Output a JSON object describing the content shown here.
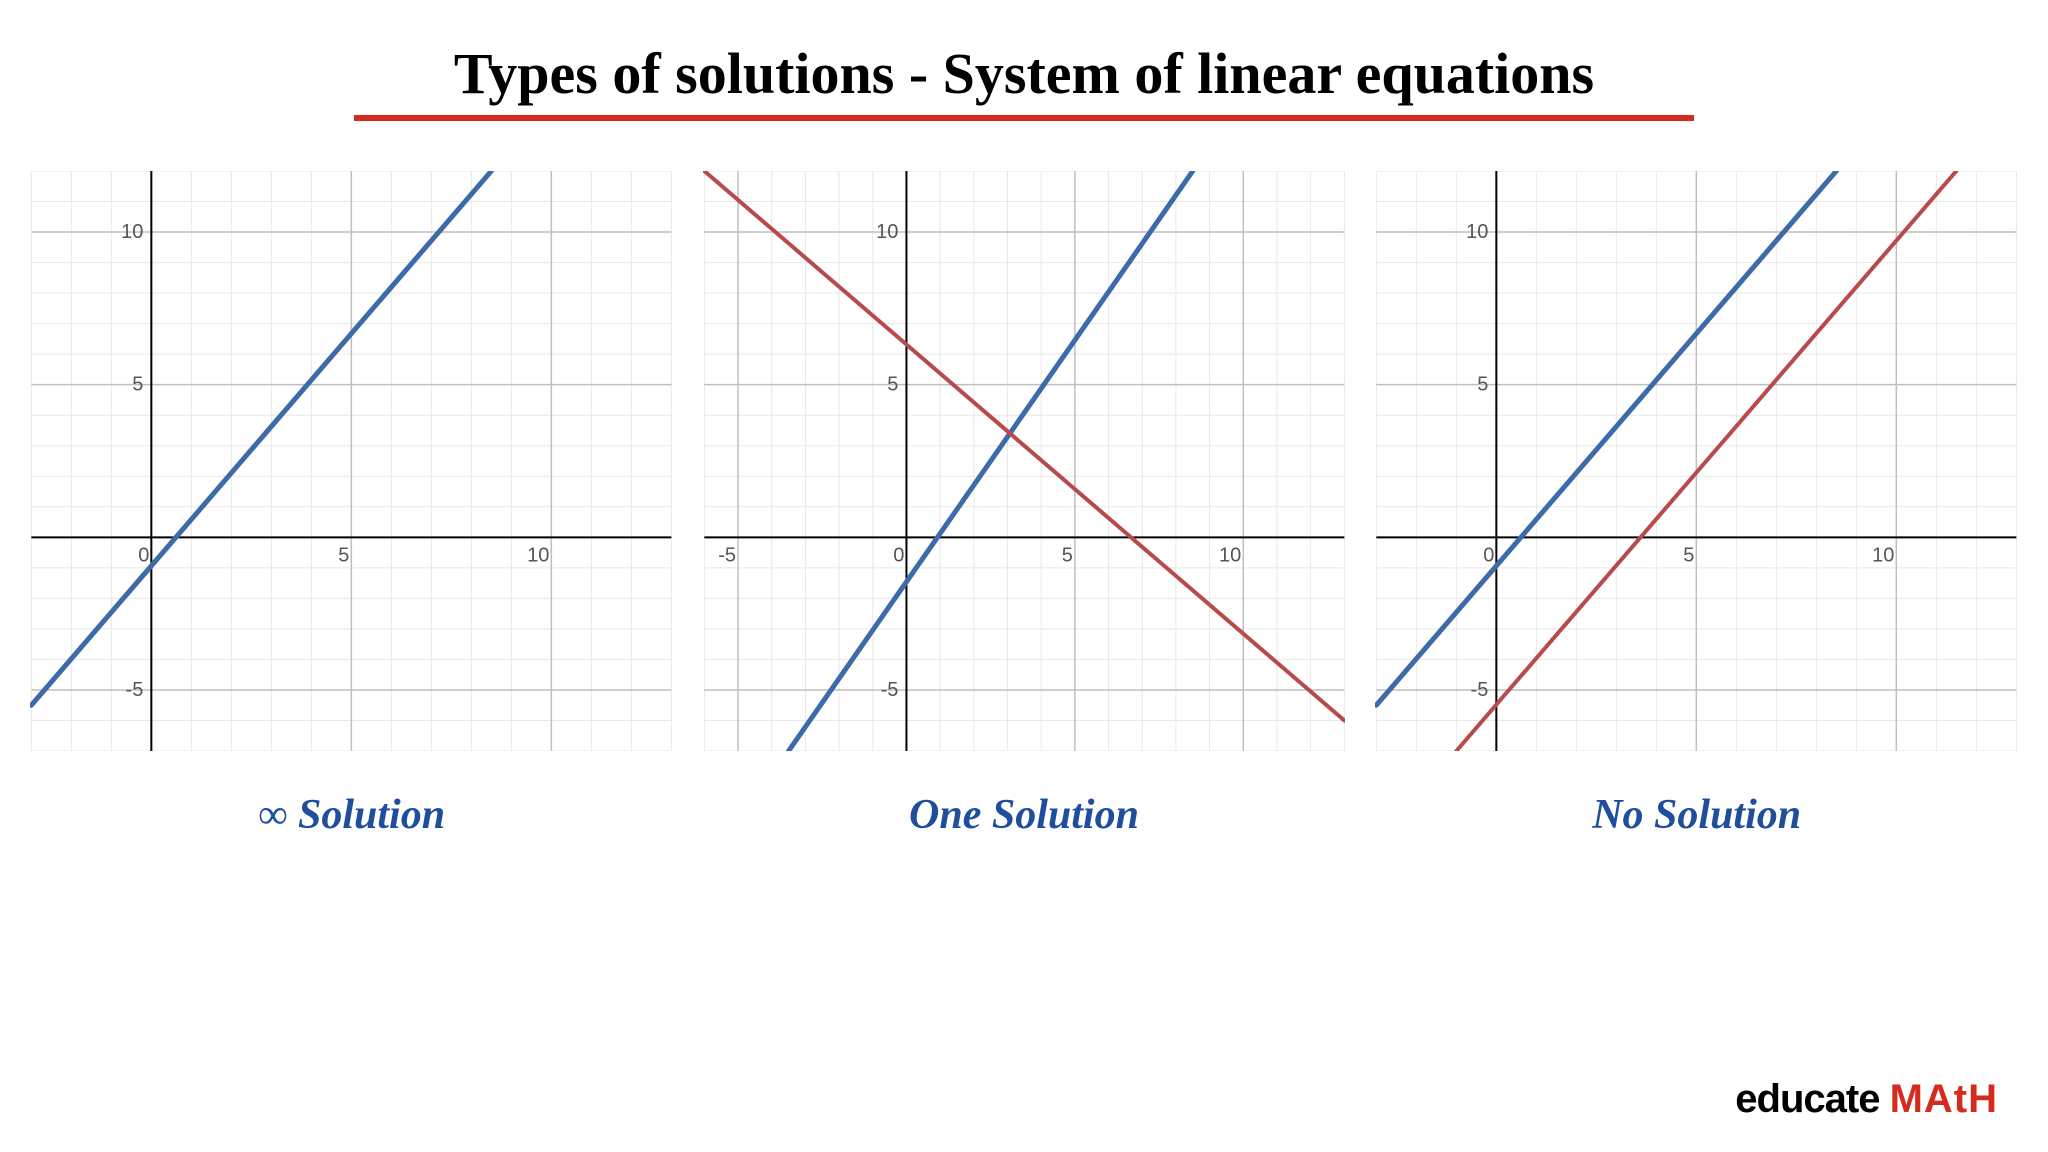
{
  "title": "Types of solutions - System of linear equations",
  "title_underline_color": "#d52b1e",
  "title_underline_width": 1340,
  "caption_color": "#1f4e9c",
  "logo": {
    "educate": "educate ",
    "math": "MAtH"
  },
  "grid": {
    "minor_color": "#e8e8e8",
    "major_color": "#bfbfbf",
    "axis_color": "#000000",
    "tick_font_size": 20,
    "tick_color": "#555555",
    "line_width_blue": 5,
    "line_width_red": 4,
    "blue": "#3d6aa8",
    "red": "#b84a4a"
  },
  "panels": [
    {
      "caption": "∞ Solution",
      "xlim": [
        -3,
        13
      ],
      "ylim": [
        -7,
        12
      ],
      "xticks": [
        0,
        5,
        10
      ],
      "yticks": [
        -5,
        0,
        5,
        10
      ],
      "lines": [
        {
          "color": "blue",
          "x1": -3,
          "y1": -5.5,
          "x2": 8.5,
          "y2": 12
        }
      ]
    },
    {
      "caption": "One Solution",
      "xlim": [
        -6,
        13
      ],
      "ylim": [
        -7,
        12
      ],
      "xticks": [
        -5,
        0,
        5,
        10
      ],
      "yticks": [
        -5,
        0,
        5,
        10
      ],
      "lines": [
        {
          "color": "blue",
          "x1": -3.5,
          "y1": -7,
          "x2": 8.5,
          "y2": 12
        },
        {
          "color": "red",
          "x1": -6,
          "y1": 12,
          "x2": 13,
          "y2": -6
        }
      ]
    },
    {
      "caption": "No Solution",
      "xlim": [
        -3,
        13
      ],
      "ylim": [
        -7,
        12
      ],
      "xticks": [
        0,
        5,
        10
      ],
      "yticks": [
        -5,
        0,
        5,
        10
      ],
      "lines": [
        {
          "color": "blue",
          "x1": -3,
          "y1": -5.5,
          "x2": 8.5,
          "y2": 12
        },
        {
          "color": "red",
          "x1": -1,
          "y1": -7,
          "x2": 11.5,
          "y2": 12
        }
      ]
    }
  ]
}
